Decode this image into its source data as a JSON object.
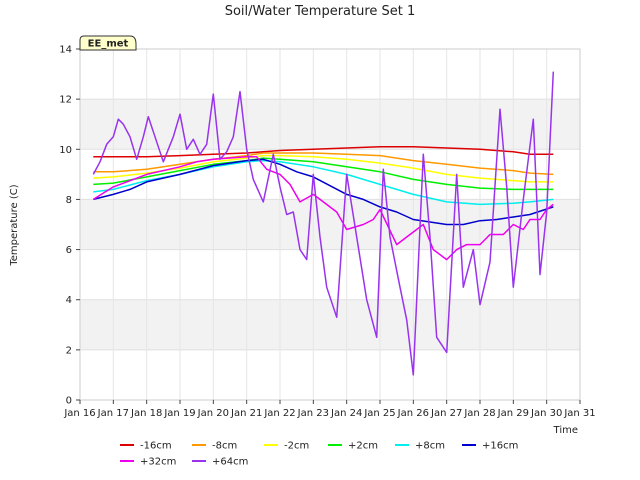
{
  "chart_data": {
    "type": "line",
    "title": "Soil/Water Temperature Set 1",
    "xlabel": "Time",
    "ylabel": "Temperature (C)",
    "badge": "EE_met",
    "xlim": [
      16,
      31
    ],
    "ylim": [
      0,
      14
    ],
    "xticks": [
      16,
      17,
      18,
      19,
      20,
      21,
      22,
      23,
      24,
      25,
      26,
      27,
      28,
      29,
      30,
      31
    ],
    "xtick_labels": [
      "Jan 16",
      "Jan 17",
      "Jan 18",
      "Jan 19",
      "Jan 20",
      "Jan 21",
      "Jan 22",
      "Jan 23",
      "Jan 24",
      "Jan 25",
      "Jan 26",
      "Jan 27",
      "Jan 28",
      "Jan 29",
      "Jan 30",
      "Jan 31"
    ],
    "yticks": [
      0,
      2,
      4,
      6,
      8,
      10,
      12,
      14
    ],
    "ytick_labels": [
      "0",
      "2",
      "4",
      "6",
      "8",
      "10",
      "12",
      "14"
    ],
    "grid": true,
    "legend_position": "bottom",
    "series": [
      {
        "name": "-16cm",
        "color": "#dd0000",
        "x": [
          16.4,
          17,
          18,
          19,
          20,
          21,
          21.5,
          22,
          23,
          24,
          25,
          26,
          27,
          28,
          29,
          29.5,
          30.2
        ],
        "y": [
          9.7,
          9.7,
          9.7,
          9.75,
          9.8,
          9.85,
          9.9,
          9.95,
          10.0,
          10.05,
          10.1,
          10.1,
          10.05,
          10.0,
          9.9,
          9.8,
          9.8
        ]
      },
      {
        "name": "-8cm",
        "color": "#ff9900",
        "x": [
          16.4,
          17,
          18,
          19,
          20,
          21,
          21.5,
          22,
          23,
          24,
          25,
          26,
          27,
          28,
          29,
          29.5,
          30.2
        ],
        "y": [
          9.1,
          9.1,
          9.2,
          9.4,
          9.6,
          9.75,
          9.85,
          9.85,
          9.85,
          9.8,
          9.75,
          9.55,
          9.4,
          9.25,
          9.15,
          9.05,
          9.0
        ]
      },
      {
        "name": "-2cm",
        "color": "#ffff00",
        "x": [
          16.4,
          17,
          18,
          19,
          20,
          21,
          21.5,
          22,
          23,
          24,
          25,
          26,
          27,
          28,
          29,
          29.5,
          30.2
        ],
        "y": [
          8.85,
          8.9,
          9.05,
          9.25,
          9.5,
          9.65,
          9.75,
          9.75,
          9.7,
          9.6,
          9.45,
          9.25,
          9.0,
          8.85,
          8.75,
          8.7,
          8.7
        ]
      },
      {
        "name": "+2cm",
        "color": "#00ee00",
        "x": [
          16.4,
          17,
          18,
          19,
          20,
          21,
          21.5,
          22,
          23,
          24,
          25,
          26,
          27,
          28,
          29,
          29.5,
          30.2
        ],
        "y": [
          8.6,
          8.65,
          8.9,
          9.15,
          9.4,
          9.55,
          9.65,
          9.6,
          9.5,
          9.3,
          9.1,
          8.8,
          8.6,
          8.45,
          8.4,
          8.4,
          8.4
        ]
      },
      {
        "name": "+8cm",
        "color": "#00eeee",
        "x": [
          16.4,
          17,
          18,
          19,
          20,
          21,
          21.5,
          22,
          23,
          24,
          25,
          26,
          27,
          28,
          29,
          29.5,
          30.2
        ],
        "y": [
          8.3,
          8.4,
          8.75,
          9.0,
          9.3,
          9.5,
          9.55,
          9.5,
          9.3,
          9.0,
          8.6,
          8.2,
          7.9,
          7.8,
          7.85,
          7.9,
          8.0
        ]
      },
      {
        "name": "+16cm",
        "color": "#0000cc",
        "x": [
          16.4,
          17,
          17.5,
          18,
          19,
          20,
          21,
          21.5,
          22,
          22.5,
          23,
          24,
          24.5,
          25,
          25.5,
          26,
          27,
          27.5,
          28,
          28.5,
          29,
          29.5,
          30.2
        ],
        "y": [
          8.0,
          8.2,
          8.4,
          8.7,
          9.0,
          9.35,
          9.55,
          9.6,
          9.4,
          9.1,
          8.9,
          8.2,
          8.0,
          7.7,
          7.5,
          7.2,
          7.0,
          7.0,
          7.15,
          7.2,
          7.3,
          7.4,
          7.7
        ]
      },
      {
        "name": "+32cm",
        "color": "#ee00ee",
        "x": [
          16.4,
          17,
          18,
          19,
          19.5,
          20,
          21,
          21.3,
          21.6,
          22,
          22.3,
          22.6,
          23,
          23.3,
          23.7,
          24,
          24.5,
          24.8,
          25,
          25.5,
          25.8,
          26.3,
          26.6,
          27,
          27.3,
          27.6,
          28,
          28.3,
          28.7,
          29,
          29.3,
          29.5,
          29.8,
          30,
          30.2
        ],
        "y": [
          8.0,
          8.5,
          9.0,
          9.3,
          9.5,
          9.6,
          9.7,
          9.7,
          9.2,
          9.0,
          8.6,
          7.9,
          8.2,
          7.9,
          7.5,
          6.8,
          7.0,
          7.2,
          7.6,
          6.2,
          6.5,
          7.0,
          6.0,
          5.6,
          6.0,
          6.2,
          6.2,
          6.6,
          6.6,
          7.0,
          6.8,
          7.2,
          7.2,
          7.6,
          7.8
        ]
      },
      {
        "name": "+64cm",
        "color": "#9933ee",
        "x": [
          16.4,
          16.6,
          16.8,
          17.0,
          17.15,
          17.3,
          17.5,
          17.7,
          17.9,
          18.05,
          18.2,
          18.5,
          18.8,
          19.0,
          19.2,
          19.4,
          19.6,
          19.8,
          20.0,
          20.2,
          20.4,
          20.6,
          20.8,
          21.0,
          21.2,
          21.5,
          21.8,
          22.0,
          22.2,
          22.4,
          22.6,
          22.8,
          23.0,
          23.2,
          23.4,
          23.7,
          24.0,
          24.3,
          24.6,
          24.9,
          25.1,
          25.3,
          25.6,
          25.8,
          26.0,
          26.3,
          26.5,
          26.7,
          27.0,
          27.3,
          27.5,
          27.8,
          28.0,
          28.3,
          28.6,
          28.8,
          29.0,
          29.3,
          29.6,
          29.8,
          30.0,
          30.2
        ],
        "y": [
          9.0,
          9.5,
          10.2,
          10.5,
          11.2,
          11.0,
          10.5,
          9.6,
          10.5,
          11.3,
          10.7,
          9.5,
          10.5,
          11.4,
          10.0,
          10.4,
          9.8,
          10.2,
          12.2,
          9.6,
          9.9,
          10.5,
          12.3,
          10.0,
          8.8,
          7.9,
          9.8,
          8.5,
          7.4,
          7.5,
          6.0,
          5.6,
          9.0,
          6.5,
          4.5,
          3.3,
          9.0,
          6.5,
          4.0,
          2.5,
          9.2,
          6.5,
          4.5,
          3.2,
          1.0,
          9.8,
          6.5,
          2.5,
          1.9,
          9.0,
          4.5,
          6.0,
          3.8,
          5.5,
          11.6,
          8.5,
          4.5,
          8.0,
          11.2,
          5.0,
          7.5,
          13.1
        ]
      }
    ]
  }
}
